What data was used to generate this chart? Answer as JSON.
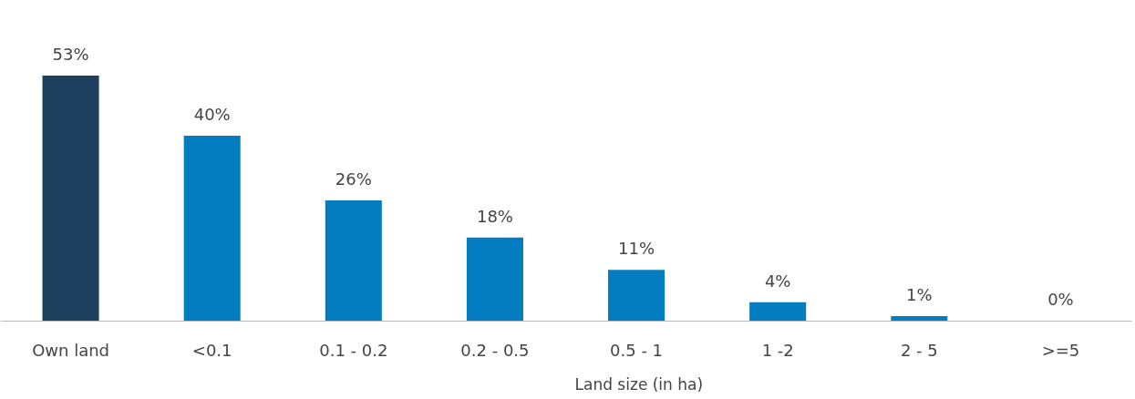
{
  "chart_data": {
    "type": "bar",
    "xlabel": "Land size (in ha)",
    "categories": [
      "Own land",
      "<0.1",
      "0.1 - 0.2",
      "0.2 - 0.5",
      "0.5 - 1",
      "1 -2",
      "2 - 5",
      ">=5"
    ],
    "values": [
      53,
      40,
      26,
      18,
      11,
      4,
      1,
      0
    ],
    "value_labels": [
      "53%",
      "40%",
      "26%",
      "18%",
      "11%",
      "4%",
      "1%",
      "0%"
    ],
    "colors": [
      "#1c3f5e",
      "#037dc0",
      "#037dc0",
      "#037dc0",
      "#037dc0",
      "#037dc0",
      "#037dc0",
      "#037dc0"
    ]
  }
}
